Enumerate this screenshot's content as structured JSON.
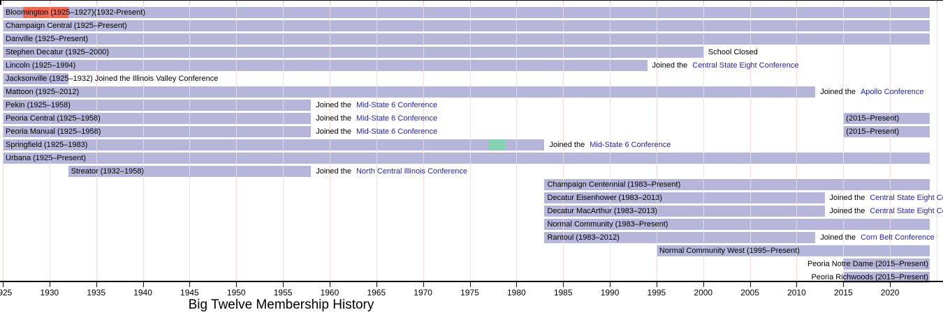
{
  "colors": {
    "member_bar": "#b6b6da",
    "left_gap_highlight": "#f4664d",
    "alt_highlight": "#85d2b4",
    "link": "#2222cc",
    "text": "#000000",
    "grid": "#f0b4b4",
    "axis": "#000000",
    "top_tick": "#bbbbbb",
    "background": "#ffffff"
  },
  "chart_data": {
    "type": "timeline",
    "title": "Big Twelve Membership History",
    "x_axis": {
      "start": 1925,
      "end": 2025.7,
      "present_value": 2024.25,
      "tick_step": 5,
      "tick_years": [
        1925,
        1930,
        1935,
        1940,
        1945,
        1950,
        1955,
        1960,
        1965,
        1970,
        1975,
        1980,
        1985,
        1990,
        1995,
        2000,
        2005,
        2010,
        2015,
        2020
      ],
      "grid_years": [
        1925,
        1930,
        1935,
        1940,
        1945,
        1950,
        1955,
        1960,
        1965,
        1970,
        1975,
        1980,
        1985,
        1990,
        1995,
        2000,
        2005,
        2010,
        2015,
        2020,
        2025
      ]
    },
    "rows": [
      {
        "name": "Bloomington",
        "label": "Bloomington (1925–1927)(1932-Present)",
        "bars": [
          {
            "from": 1925,
            "to": "present",
            "color": "member_bar"
          },
          {
            "from": 1927.2,
            "to": 1932,
            "color": "left_gap_highlight"
          }
        ]
      },
      {
        "name": "Champaign Central",
        "label": "Champaign Central (1925–Present)",
        "bars": [
          {
            "from": 1925,
            "to": "present",
            "color": "member_bar"
          }
        ]
      },
      {
        "name": "Danville",
        "label": "Danville (1925–Present)",
        "bars": [
          {
            "from": 1925,
            "to": "present",
            "color": "member_bar"
          }
        ]
      },
      {
        "name": "Stephen Decatur",
        "label": "Stephen Decatur (1925–2000)",
        "bars": [
          {
            "from": 1925,
            "to": 2000,
            "color": "member_bar"
          }
        ],
        "note": {
          "text": "School Closed"
        }
      },
      {
        "name": "Lincoln",
        "label": "Lincoln (1925–1994)",
        "bars": [
          {
            "from": 1925,
            "to": 1994,
            "color": "member_bar"
          }
        ],
        "note": {
          "text": "Joined the",
          "link": "Central State Eight Conference"
        }
      },
      {
        "name": "Jacksonville",
        "label": "Jacksonville (1925–1932) Joined the Illinois Valley Conference",
        "bars": [
          {
            "from": 1925,
            "to": 1932,
            "color": "member_bar"
          }
        ]
      },
      {
        "name": "Mattoon",
        "label": "Mattoon (1925–2012)",
        "bars": [
          {
            "from": 1925,
            "to": 2012,
            "color": "member_bar"
          }
        ],
        "note": {
          "text": "Joined the",
          "link": "Apollo Conference"
        }
      },
      {
        "name": "Pekin",
        "label": "Pekin (1925–1958)",
        "bars": [
          {
            "from": 1925,
            "to": 1958,
            "color": "member_bar"
          }
        ],
        "note": {
          "text": "Joined the",
          "link": "Mid-State 6 Conference"
        }
      },
      {
        "name": "Peoria Central",
        "label": "Peoria Central (1925–1958)",
        "bars": [
          {
            "from": 1925,
            "to": 1958,
            "color": "member_bar"
          },
          {
            "from": 2015,
            "to": "present",
            "color": "member_bar",
            "label": "(2015–Present)"
          }
        ],
        "note": {
          "text": "Joined the",
          "link": "Mid-State 6 Conference",
          "anchor": 0
        }
      },
      {
        "name": "Peoria Manual",
        "label": "Peoria Manual (1925–1958)",
        "bars": [
          {
            "from": 1925,
            "to": 1958,
            "color": "member_bar"
          },
          {
            "from": 2015,
            "to": "present",
            "color": "member_bar",
            "label": "(2015–Present)"
          }
        ],
        "note": {
          "text": "Joined the",
          "link": "Mid-State 6 Conference",
          "anchor": 0
        }
      },
      {
        "name": "Springfield",
        "label": "Springfield (1925–1983)",
        "bars": [
          {
            "from": 1925,
            "to": 1983,
            "color": "member_bar"
          },
          {
            "from": 1977,
            "to": 1978.8,
            "color": "alt_highlight"
          }
        ],
        "note": {
          "text": "Joined the",
          "link": "Mid-State 6 Conference",
          "anchor": 0
        }
      },
      {
        "name": "Urbana",
        "label": "Urbana (1925–Present)",
        "bars": [
          {
            "from": 1925,
            "to": "present",
            "color": "member_bar"
          }
        ]
      },
      {
        "name": "Streator",
        "label": "Streator (1932–1958)",
        "bars": [
          {
            "from": 1932,
            "to": 1958,
            "color": "member_bar"
          }
        ],
        "note": {
          "text": "Joined the",
          "link": "North Central Illinois Conference"
        }
      },
      {
        "name": "Champaign Centennial",
        "label": "Champaign Centennial (1983–Present)",
        "bars": [
          {
            "from": 1983,
            "to": "present",
            "color": "member_bar"
          }
        ]
      },
      {
        "name": "Decatur Eisenhower",
        "label": "Decatur Eisenhower (1983–2013)",
        "bars": [
          {
            "from": 1983,
            "to": 2013,
            "color": "member_bar"
          }
        ],
        "note": {
          "text": "Joined the",
          "link": "Central State Eight Conference"
        }
      },
      {
        "name": "Decatur MacArthur",
        "label": "Decatur MacArthur (1983–2013)",
        "bars": [
          {
            "from": 1983,
            "to": 2013,
            "color": "member_bar"
          }
        ],
        "note": {
          "text": "Joined the",
          "link": "Central State Eight Conference"
        }
      },
      {
        "name": "Normal Community",
        "label": "Normal Community (1983–Present)",
        "bars": [
          {
            "from": 1983,
            "to": "present",
            "color": "member_bar"
          }
        ]
      },
      {
        "name": "Rantoul",
        "label": "Rantoul (1983–2012)",
        "bars": [
          {
            "from": 1983,
            "to": 2012,
            "color": "member_bar"
          }
        ],
        "note": {
          "text": "Joined the",
          "link": "Corn Belt Conference"
        }
      },
      {
        "name": "Normal Community West",
        "label": "Normal Community West (1995–Present)",
        "bars": [
          {
            "from": 1995,
            "to": "present",
            "color": "member_bar"
          }
        ]
      },
      {
        "name": "Peoria Notre Dame",
        "label": "Peoria Notre Dame (2015–Present)",
        "label_align": "right",
        "bars": [
          {
            "from": 2015,
            "to": "present",
            "color": "member_bar"
          }
        ]
      },
      {
        "name": "Peoria Richwoods",
        "label": "Peoria Richwoods (2015–Present)",
        "label_align": "right",
        "bars": [
          {
            "from": 2015,
            "to": "present",
            "color": "member_bar"
          }
        ]
      }
    ]
  }
}
